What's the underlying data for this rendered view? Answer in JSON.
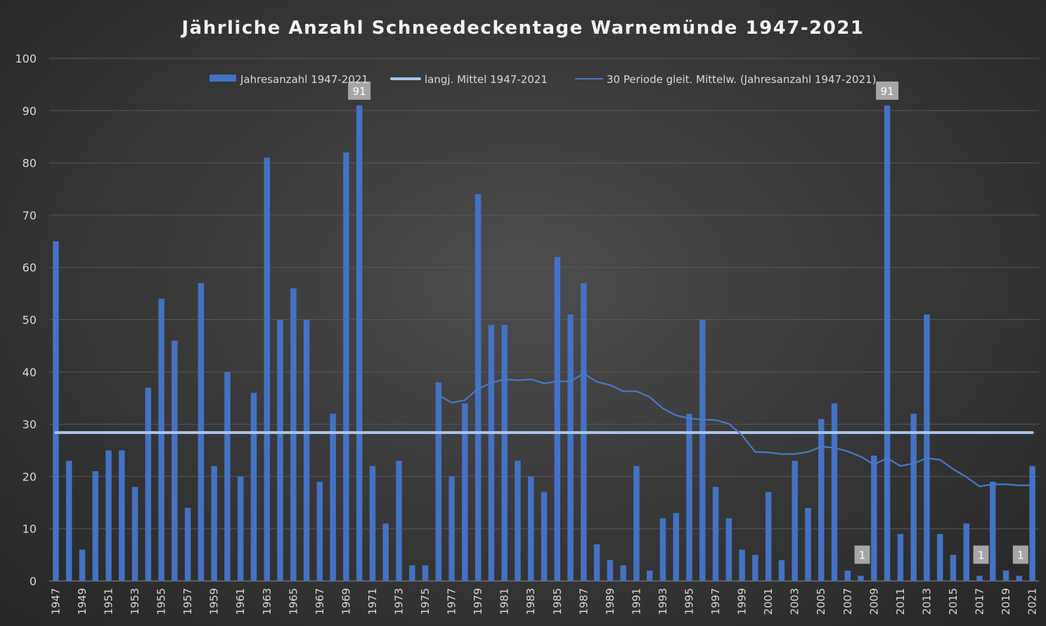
{
  "chart_data": {
    "type": "bar",
    "title": "Jährliche Anzahl Schneedeckentage Warnemünde 1947-2021",
    "xlabel": "",
    "ylabel": "",
    "ylim": [
      0,
      100
    ],
    "yticks": [
      0,
      10,
      20,
      30,
      40,
      50,
      60,
      70,
      80,
      90,
      100
    ],
    "grid": true,
    "legend_position": "top",
    "categories": [
      1947,
      1948,
      1949,
      1950,
      1951,
      1952,
      1953,
      1954,
      1955,
      1956,
      1957,
      1958,
      1959,
      1960,
      1961,
      1962,
      1963,
      1964,
      1965,
      1966,
      1967,
      1968,
      1969,
      1970,
      1971,
      1972,
      1973,
      1974,
      1975,
      1976,
      1977,
      1978,
      1979,
      1980,
      1981,
      1982,
      1983,
      1984,
      1985,
      1986,
      1987,
      1988,
      1989,
      1990,
      1991,
      1992,
      1993,
      1994,
      1995,
      1996,
      1997,
      1998,
      1999,
      2000,
      2001,
      2002,
      2003,
      2004,
      2005,
      2006,
      2007,
      2008,
      2009,
      2010,
      2011,
      2012,
      2013,
      2014,
      2015,
      2016,
      2017,
      2018,
      2019,
      2020,
      2021
    ],
    "x_tick_labels": [
      "1947",
      "1949",
      "1951",
      "1953",
      "1955",
      "1957",
      "1959",
      "1961",
      "1963",
      "1965",
      "1967",
      "1969",
      "1971",
      "1973",
      "1975",
      "1977",
      "1979",
      "1981",
      "1983",
      "1985",
      "1987",
      "1989",
      "1991",
      "1993",
      "1995",
      "1997",
      "1999",
      "2001",
      "2003",
      "2005",
      "2007",
      "2009",
      "2011",
      "2013",
      "2015",
      "2017",
      "2019",
      "2021"
    ],
    "series": [
      {
        "name": "Jahresanzahl 1947-2021",
        "kind": "bar",
        "color": "#4472c4",
        "values": [
          65,
          23,
          6,
          21,
          25,
          25,
          18,
          37,
          54,
          46,
          14,
          57,
          22,
          40,
          20,
          36,
          81,
          50,
          56,
          50,
          19,
          32,
          82,
          91,
          22,
          11,
          23,
          3,
          3,
          38,
          20,
          34,
          74,
          49,
          49,
          23,
          20,
          17,
          62,
          51,
          57,
          7,
          4,
          3,
          22,
          2,
          12,
          13,
          32,
          50,
          18,
          12,
          6,
          5,
          17,
          4,
          23,
          14,
          31,
          34,
          2,
          1,
          24,
          91,
          9,
          32,
          51,
          9,
          5,
          11,
          1,
          19,
          2,
          1,
          22
        ]
      },
      {
        "name": "langj. Mittel 1947-2021",
        "kind": "line",
        "color": "#a9c4eb",
        "value": 28.4
      },
      {
        "name": "30 Periode gleit. Mittelw. (Jahresanzahl 1947-2021)",
        "kind": "line",
        "color": "#4a78c8",
        "x": [
          1976,
          1977,
          1978,
          1979,
          1980,
          1981,
          1982,
          1983,
          1984,
          1985,
          1986,
          1987,
          1988,
          1989,
          1990,
          1991,
          1992,
          1993,
          1994,
          1995,
          1996,
          1997,
          1998,
          1999,
          2000,
          2001,
          2002,
          2003,
          2004,
          2005,
          2006,
          2007,
          2008,
          2009,
          2010,
          2011,
          2012,
          2013,
          2014,
          2015,
          2016,
          2017,
          2018,
          2019,
          2020,
          2021
        ],
        "values": [
          35.6,
          34.1,
          34.6,
          36.8,
          37.9,
          38.6,
          38.4,
          38.6,
          37.8,
          38.2,
          38.2,
          39.7,
          38.1,
          37.5,
          36.3,
          36.3,
          35.2,
          33.0,
          31.7,
          31.1,
          30.9,
          30.8,
          30.1,
          27.9,
          24.7,
          24.6,
          24.3,
          24.3,
          24.7,
          25.7,
          25.5,
          24.8,
          23.8,
          22.3,
          23.5,
          22.0,
          22.5,
          23.5,
          23.2,
          21.4,
          19.9,
          18.1,
          18.5,
          18.5,
          18.3,
          18.3
        ]
      }
    ],
    "data_labels": [
      {
        "year": 1970,
        "text": "91"
      },
      {
        "year": 2010,
        "text": "91"
      },
      {
        "year": 2008,
        "text": "1"
      },
      {
        "year": 2017,
        "text": "1"
      },
      {
        "year": 2020,
        "text": "1"
      }
    ]
  }
}
